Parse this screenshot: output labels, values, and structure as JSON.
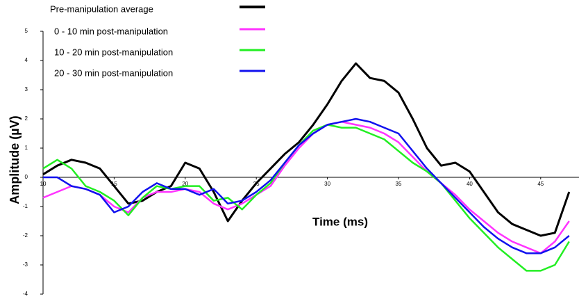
{
  "chart_data": {
    "type": "line",
    "x_label": "Time (ms)",
    "y_label": "Amplitude (µV)",
    "x": [
      10,
      11,
      12,
      13,
      14,
      15,
      16,
      17,
      18,
      19,
      20,
      21,
      22,
      23,
      24,
      25,
      26,
      27,
      28,
      29,
      30,
      31,
      32,
      33,
      34,
      35,
      36,
      37,
      38,
      39,
      40,
      41,
      42,
      43,
      44,
      45,
      46,
      47
    ],
    "series": [
      {
        "name": "Pre-manipulation average",
        "color": "#000000",
        "values": [
          0.1,
          0.4,
          0.6,
          0.5,
          0.3,
          -0.3,
          -0.9,
          -0.8,
          -0.5,
          -0.3,
          0.5,
          0.3,
          -0.5,
          -1.5,
          -0.8,
          -0.2,
          0.3,
          0.8,
          1.2,
          1.8,
          2.5,
          3.3,
          3.9,
          3.4,
          3.3,
          2.9,
          2.0,
          1.0,
          0.4,
          0.5,
          0.2,
          -0.5,
          -1.2,
          -1.6,
          -1.8,
          -2.0,
          -1.9,
          -0.5
        ]
      },
      {
        "name": "0 - 10 min post-manipulation",
        "color": "#ff33ff",
        "values": [
          -0.7,
          -0.5,
          -0.3,
          -0.4,
          -0.6,
          -1.0,
          -1.2,
          -0.7,
          -0.5,
          -0.5,
          -0.4,
          -0.5,
          -0.9,
          -1.1,
          -0.9,
          -0.6,
          -0.3,
          0.4,
          1.0,
          1.5,
          1.8,
          1.9,
          1.8,
          1.7,
          1.5,
          1.2,
          0.7,
          0.2,
          -0.2,
          -0.6,
          -1.1,
          -1.5,
          -1.9,
          -2.2,
          -2.4,
          -2.6,
          -2.2,
          -1.5
        ]
      },
      {
        "name": "10 - 20 min post-manipulation",
        "color": "#22ee22",
        "values": [
          0.3,
          0.6,
          0.3,
          -0.3,
          -0.5,
          -0.8,
          -1.3,
          -0.7,
          -0.3,
          -0.4,
          -0.3,
          -0.3,
          -0.8,
          -0.7,
          -1.1,
          -0.6,
          -0.2,
          0.5,
          1.1,
          1.6,
          1.8,
          1.7,
          1.7,
          1.5,
          1.3,
          0.9,
          0.5,
          0.2,
          -0.2,
          -0.8,
          -1.4,
          -1.9,
          -2.4,
          -2.8,
          -3.2,
          -3.2,
          -3.0,
          -2.2
        ]
      },
      {
        "name": "20 - 30 min post-manipulation",
        "color": "#1111ee",
        "values": [
          0.0,
          0.0,
          -0.3,
          -0.4,
          -0.6,
          -1.2,
          -1.0,
          -0.5,
          -0.2,
          -0.4,
          -0.4,
          -0.6,
          -0.4,
          -0.9,
          -0.8,
          -0.5,
          -0.1,
          0.5,
          1.1,
          1.5,
          1.8,
          1.9,
          2.0,
          1.9,
          1.7,
          1.5,
          0.9,
          0.3,
          -0.2,
          -0.7,
          -1.2,
          -1.7,
          -2.1,
          -2.4,
          -2.6,
          -2.6,
          -2.4,
          -2.0
        ]
      }
    ],
    "xlim": [
      10,
      47.5
    ],
    "xticks": [
      10,
      15,
      20,
      25,
      30,
      35,
      40,
      45
    ],
    "ylim": [
      -4,
      5
    ],
    "yticks": [
      -4,
      -3,
      -2,
      -1,
      0,
      1,
      2,
      3,
      4,
      5
    ]
  }
}
